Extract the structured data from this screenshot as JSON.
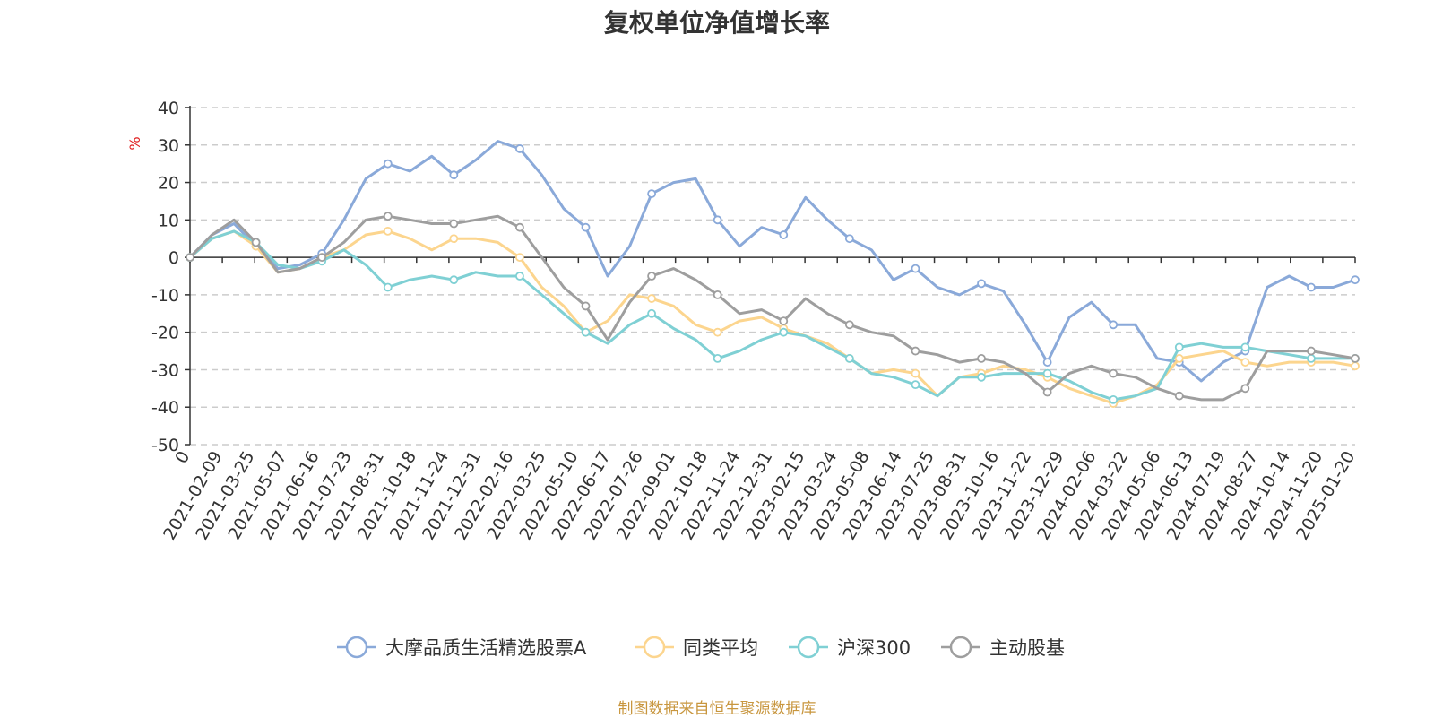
{
  "chart_data": {
    "type": "line",
    "title": "复权单位净值增长率",
    "ylabel": "%",
    "ylim": [
      -50,
      40
    ],
    "yticks": [
      40,
      30,
      20,
      10,
      0,
      -10,
      -20,
      -30,
      -40,
      -50
    ],
    "x_tick_labels": [
      "0",
      "2021-02-09",
      "2021-03-25",
      "2021-05-07",
      "2021-06-16",
      "2021-07-23",
      "2021-08-31",
      "2021-10-18",
      "2021-11-24",
      "2021-12-31",
      "2022-02-16",
      "2022-03-25",
      "2022-05-10",
      "2022-06-17",
      "2022-07-26",
      "2022-09-01",
      "2022-10-18",
      "2022-11-24",
      "2022-12-31",
      "2023-02-15",
      "2023-03-24",
      "2023-05-08",
      "2023-06-14",
      "2023-07-25",
      "2023-08-31",
      "2023-10-16",
      "2023-11-22",
      "2023-12-29",
      "2024-02-06",
      "2024-03-22",
      "2024-05-06",
      "2024-06-13",
      "2024-07-19",
      "2024-08-27",
      "2024-10-14",
      "2024-11-20",
      "2025-01-20"
    ],
    "grid": true,
    "legend_position": "bottom",
    "series": [
      {
        "name": "大摩品质生活精选股票A",
        "color": "#8aa9d9",
        "values": [
          0,
          6,
          9,
          3,
          -3,
          -2,
          1,
          10,
          21,
          25,
          23,
          27,
          22,
          26,
          31,
          29,
          22,
          13,
          8,
          -5,
          3,
          17,
          20,
          21,
          10,
          3,
          8,
          6,
          16,
          10,
          5,
          2,
          -6,
          -3,
          -8,
          -10,
          -7,
          -9,
          -18,
          -28,
          -16,
          -12,
          -18,
          -18,
          -27,
          -28,
          -33,
          -28,
          -25,
          -8,
          -5,
          -8,
          -8,
          -6
        ]
      },
      {
        "name": "同类平均",
        "color": "#fcd58e",
        "values": [
          0,
          5,
          7,
          3,
          -4,
          -3,
          0,
          2,
          6,
          7,
          5,
          2,
          5,
          5,
          4,
          0,
          -8,
          -13,
          -20,
          -17,
          -10,
          -11,
          -13,
          -18,
          -20,
          -17,
          -16,
          -19,
          -21,
          -23,
          -27,
          -31,
          -30,
          -31,
          -37,
          -32,
          -31,
          -29,
          -30,
          -32,
          -35,
          -37,
          -39,
          -37,
          -34,
          -27,
          -26,
          -25,
          -28,
          -29,
          -28,
          -28,
          -28,
          -29
        ]
      },
      {
        "name": "沪深300",
        "color": "#7fd0d4",
        "values": [
          0,
          5,
          7,
          4,
          -2,
          -3,
          -1,
          2,
          -2,
          -8,
          -6,
          -5,
          -6,
          -4,
          -5,
          -5,
          -10,
          -15,
          -20,
          -23,
          -18,
          -15,
          -19,
          -22,
          -27,
          -25,
          -22,
          -20,
          -21,
          -24,
          -27,
          -31,
          -32,
          -34,
          -37,
          -32,
          -32,
          -31,
          -31,
          -31,
          -33,
          -36,
          -38,
          -37,
          -35,
          -24,
          -23,
          -24,
          -24,
          -25,
          -26,
          -27,
          -27,
          -27
        ]
      },
      {
        "name": "主动股基",
        "color": "#9e9e9e",
        "values": [
          0,
          6,
          10,
          4,
          -4,
          -3,
          0,
          4,
          10,
          11,
          10,
          9,
          9,
          10,
          11,
          8,
          0,
          -8,
          -13,
          -22,
          -12,
          -5,
          -3,
          -6,
          -10,
          -15,
          -14,
          -17,
          -11,
          -15,
          -18,
          -20,
          -21,
          -25,
          -26,
          -28,
          -27,
          -28,
          -31,
          -36,
          -31,
          -29,
          -31,
          -32,
          -35,
          -37,
          -38,
          -38,
          -35,
          -25,
          -25,
          -25,
          -26,
          -27
        ]
      }
    ]
  },
  "source_note": "制图数据来自恒生聚源数据库"
}
